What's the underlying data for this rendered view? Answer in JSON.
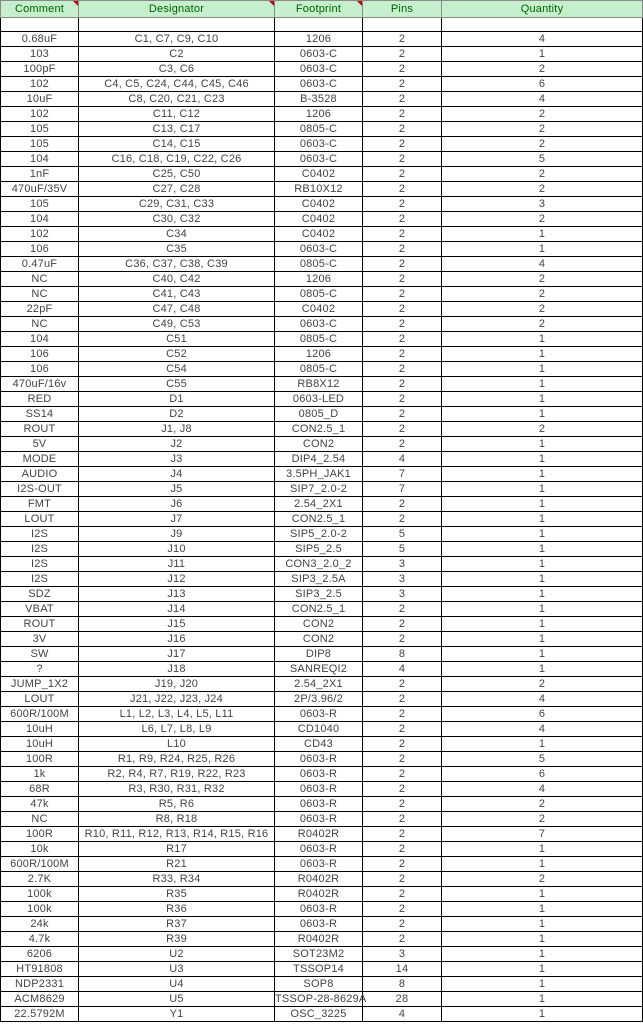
{
  "header": {
    "columns": [
      "Comment",
      "Designator",
      "Footprint",
      "Pins",
      "Quantity"
    ],
    "header_bg": "#c6efce",
    "header_text": "#006100",
    "comment_marker_color": "#c00000"
  },
  "rows": [
    [
      "0.68uF",
      "C1, C7, C9, C10",
      "1206",
      "2",
      "4"
    ],
    [
      "103",
      "C2",
      "0603-C",
      "2",
      "1"
    ],
    [
      "100pF",
      "C3, C6",
      "0603-C",
      "2",
      "2"
    ],
    [
      "102",
      "C4, C5, C24, C44, C45, C46",
      "0603-C",
      "2",
      "6"
    ],
    [
      "10uF",
      "C8, C20, C21, C23",
      "B-3528",
      "2",
      "4"
    ],
    [
      "102",
      "C11, C12",
      "1206",
      "2",
      "2"
    ],
    [
      "105",
      "C13, C17",
      "0805-C",
      "2",
      "2"
    ],
    [
      "105",
      "C14, C15",
      "0603-C",
      "2",
      "2"
    ],
    [
      "104",
      "C16, C18, C19, C22, C26",
      "0603-C",
      "2",
      "5"
    ],
    [
      "1nF",
      "C25, C50",
      "C0402",
      "2",
      "2"
    ],
    [
      "470uF/35V",
      "C27, C28",
      "RB10X12",
      "2",
      "2"
    ],
    [
      "105",
      "C29, C31, C33",
      "C0402",
      "2",
      "3"
    ],
    [
      "104",
      "C30, C32",
      "C0402",
      "2",
      "2"
    ],
    [
      "102",
      "C34",
      "C0402",
      "2",
      "1"
    ],
    [
      "106",
      "C35",
      "0603-C",
      "2",
      "1"
    ],
    [
      "0.47uF",
      "C36, C37, C38, C39",
      "0805-C",
      "2",
      "4"
    ],
    [
      "NC",
      "C40, C42",
      "1206",
      "2",
      "2"
    ],
    [
      "NC",
      "C41, C43",
      "0805-C",
      "2",
      "2"
    ],
    [
      "22pF",
      "C47, C48",
      "C0402",
      "2",
      "2"
    ],
    [
      "NC",
      "C49, C53",
      "0603-C",
      "2",
      "2"
    ],
    [
      "104",
      "C51",
      "0805-C",
      "2",
      "1"
    ],
    [
      "106",
      "C52",
      "1206",
      "2",
      "1"
    ],
    [
      "106",
      "C54",
      "0805-C",
      "2",
      "1"
    ],
    [
      "470uF/16v",
      "C55",
      "RB8X12",
      "2",
      "1"
    ],
    [
      "RED",
      "D1",
      "0603-LED",
      "2",
      "1"
    ],
    [
      "SS14",
      "D2",
      "0805_D",
      "2",
      "1"
    ],
    [
      "ROUT",
      "J1, J8",
      "CON2.5_1",
      "2",
      "2"
    ],
    [
      "5V",
      "J2",
      "CON2",
      "2",
      "1"
    ],
    [
      "MODE",
      "J3",
      "DIP4_2.54",
      "4",
      "1"
    ],
    [
      "AUDIO",
      "J4",
      "3.5PH_JAK1",
      "7",
      "1"
    ],
    [
      "I2S-OUT",
      "J5",
      "SIP7_2.0-2",
      "7",
      "1"
    ],
    [
      "FMT",
      "J6",
      "2.54_2X1",
      "2",
      "1"
    ],
    [
      "LOUT",
      "J7",
      "CON2.5_1",
      "2",
      "1"
    ],
    [
      "I2S",
      "J9",
      "SIP5_2.0-2",
      "5",
      "1"
    ],
    [
      "I2S",
      "J10",
      "SIP5_2.5",
      "5",
      "1"
    ],
    [
      "I2S",
      "J11",
      "CON3_2.0_2",
      "3",
      "1"
    ],
    [
      "I2S",
      "J12",
      "SIP3_2.5A",
      "3",
      "1"
    ],
    [
      "SDZ",
      "J13",
      "SIP3_2.5",
      "3",
      "1"
    ],
    [
      "VBAT",
      "J14",
      "CON2.5_1",
      "2",
      "1"
    ],
    [
      "ROUT",
      "J15",
      "CON2",
      "2",
      "1"
    ],
    [
      "3V",
      "J16",
      "CON2",
      "2",
      "1"
    ],
    [
      "SW",
      "J17",
      "DIP8",
      "8",
      "1"
    ],
    [
      "?",
      "J18",
      "SANREQI2",
      "4",
      "1"
    ],
    [
      "JUMP_1X2",
      "J19, J20",
      "2.54_2X1",
      "2",
      "2"
    ],
    [
      "LOUT",
      "J21, J22, J23, J24",
      "2P/3.96/2",
      "2",
      "4"
    ],
    [
      "600R/100M",
      "L1, L2, L3, L4, L5, L11",
      "0603-R",
      "2",
      "6"
    ],
    [
      "10uH",
      "L6, L7, L8, L9",
      "CD1040",
      "2",
      "4"
    ],
    [
      "10uH",
      "L10",
      "CD43",
      "2",
      "1"
    ],
    [
      "100R",
      "R1, R9, R24, R25, R26",
      "0603-R",
      "2",
      "5"
    ],
    [
      "1k",
      "R2, R4, R7, R19, R22, R23",
      "0603-R",
      "2",
      "6"
    ],
    [
      "68R",
      "R3, R30, R31, R32",
      "0603-R",
      "2",
      "4"
    ],
    [
      "47k",
      "R5, R6",
      "0603-R",
      "2",
      "2"
    ],
    [
      "NC",
      "R8, R18",
      "0603-R",
      "2",
      "2"
    ],
    [
      "100R",
      "R10, R11, R12, R13, R14, R15, R16",
      "R0402R",
      "2",
      "7"
    ],
    [
      "10k",
      "R17",
      "0603-R",
      "2",
      "1"
    ],
    [
      "600R/100M",
      "R21",
      "0603-R",
      "2",
      "1"
    ],
    [
      "2.7K",
      "R33, R34",
      "R0402R",
      "2",
      "2"
    ],
    [
      "100k",
      "R35",
      "R0402R",
      "2",
      "1"
    ],
    [
      "100k",
      "R36",
      "0603-R",
      "2",
      "1"
    ],
    [
      "24k",
      "R37",
      "0603-R",
      "2",
      "1"
    ],
    [
      "4.7k",
      "R39",
      "R0402R",
      "2",
      "1"
    ],
    [
      "6206",
      "U2",
      "SOT23M2",
      "3",
      "1"
    ],
    [
      "HT91808",
      "U3",
      "TSSOP14",
      "14",
      "1"
    ],
    [
      "NDP2331",
      "U4",
      "SOP8",
      "8",
      "1"
    ],
    [
      "ACM8629",
      "U5",
      "TSSOP-28-8629A",
      "28",
      "1"
    ],
    [
      "22.5792M",
      "Y1",
      "OSC_3225",
      "4",
      "1"
    ]
  ]
}
